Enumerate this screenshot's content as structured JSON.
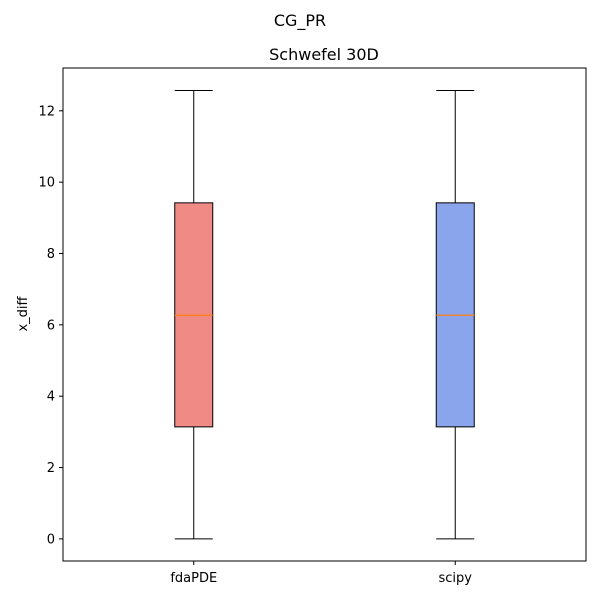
{
  "figure": {
    "suptitle": "CG_PR"
  },
  "chart_data": {
    "type": "box",
    "title": "Schwefel 30D",
    "xlabel": "",
    "ylabel": "x_diff",
    "ylim": [
      -0.62,
      13.2
    ],
    "yticks": [
      0,
      2,
      4,
      6,
      8,
      10,
      12
    ],
    "ytick_labels": [
      "0",
      "2",
      "4",
      "6",
      "8",
      "10",
      "12"
    ],
    "categories": [
      "fdaPDE",
      "scipy"
    ],
    "boxes": [
      {
        "name": "fdaPDE",
        "whisker_low": 0,
        "q1": 3.14,
        "median": 6.27,
        "q3": 9.42,
        "whisker_high": 12.57,
        "color": "#f08a85"
      },
      {
        "name": "scipy",
        "whisker_low": 0,
        "q1": 3.14,
        "median": 6.27,
        "q3": 9.42,
        "whisker_high": 12.57,
        "color": "#8aa5ec"
      }
    ],
    "median_color": "#ff7f0e",
    "edge_color": "#000000",
    "grid": false,
    "legend": "none"
  }
}
